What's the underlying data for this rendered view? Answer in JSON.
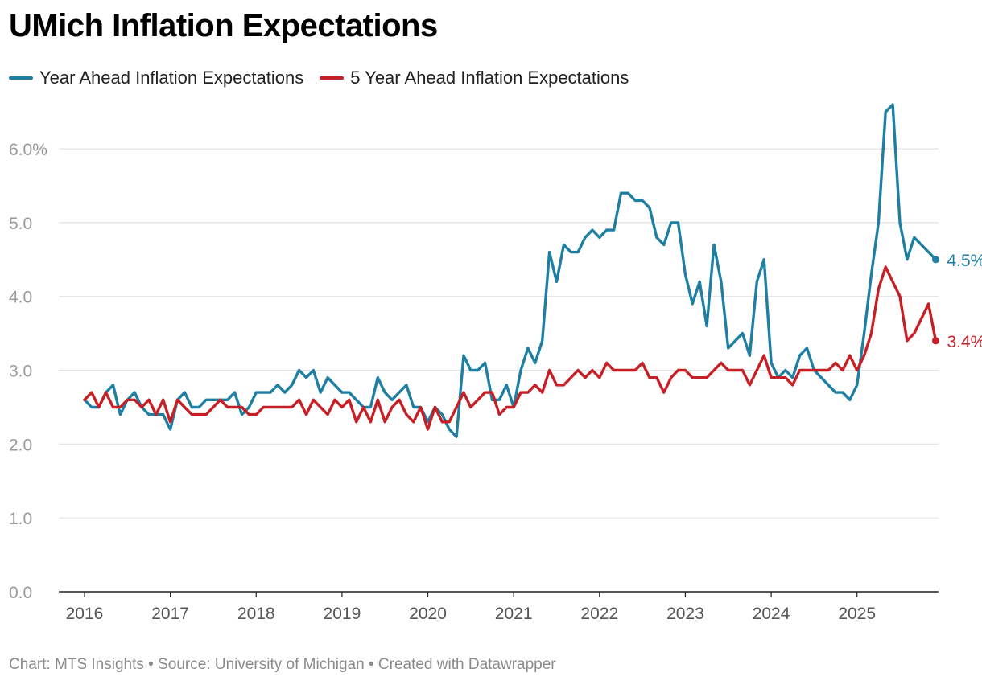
{
  "header": {
    "title": "UMich Inflation Expectations"
  },
  "legend": {
    "items": [
      {
        "label": "Year Ahead Inflation Expectations",
        "color": "#1f7fa3"
      },
      {
        "label": "5 Year Ahead Inflation Expectations",
        "color": "#c62026"
      }
    ]
  },
  "footer": {
    "text": "Chart: MTS Insights • Source: University of Michigan • Created with Datawrapper"
  },
  "chart_data": {
    "type": "line",
    "title": "UMich Inflation Expectations",
    "xlabel": "",
    "ylabel": "",
    "x_start": "2016-01",
    "x_end": "2025-11",
    "xlim": [
      2015.7,
      2025.95
    ],
    "ylim": [
      0,
      6.6
    ],
    "grid": true,
    "legend_position": "top-left",
    "x_ticks": [
      "2016",
      "2017",
      "2018",
      "2019",
      "2020",
      "2021",
      "2022",
      "2023",
      "2024",
      "2025"
    ],
    "y_ticks": [
      {
        "value": 0,
        "label": "0.0"
      },
      {
        "value": 1,
        "label": "1.0"
      },
      {
        "value": 2,
        "label": "2.0"
      },
      {
        "value": 3,
        "label": "3.0"
      },
      {
        "value": 4,
        "label": "4.0"
      },
      {
        "value": 5,
        "label": "5.0"
      },
      {
        "value": 6,
        "label": "6.0%"
      }
    ],
    "series": [
      {
        "name": "Year Ahead Inflation Expectations",
        "color": "#1f7fa3",
        "end_label": "4.5%",
        "values": [
          2.6,
          2.5,
          2.5,
          2.7,
          2.8,
          2.4,
          2.6,
          2.7,
          2.5,
          2.4,
          2.4,
          2.4,
          2.2,
          2.6,
          2.7,
          2.5,
          2.5,
          2.6,
          2.6,
          2.6,
          2.6,
          2.7,
          2.4,
          2.5,
          2.7,
          2.7,
          2.7,
          2.8,
          2.7,
          2.8,
          3.0,
          2.9,
          3.0,
          2.7,
          2.9,
          2.8,
          2.7,
          2.7,
          2.6,
          2.5,
          2.5,
          2.9,
          2.7,
          2.6,
          2.7,
          2.8,
          2.5,
          2.5,
          2.3,
          2.5,
          2.4,
          2.2,
          2.1,
          3.2,
          3.0,
          3.0,
          3.1,
          2.6,
          2.6,
          2.8,
          2.5,
          3.0,
          3.3,
          3.1,
          3.4,
          4.6,
          4.2,
          4.7,
          4.6,
          4.6,
          4.8,
          4.9,
          4.8,
          4.9,
          4.9,
          5.4,
          5.4,
          5.3,
          5.3,
          5.2,
          4.8,
          4.7,
          5.0,
          5.0,
          4.3,
          3.9,
          4.2,
          3.6,
          4.7,
          4.2,
          3.3,
          3.4,
          3.5,
          3.2,
          4.2,
          4.5,
          3.1,
          2.9,
          3.0,
          2.9,
          3.2,
          3.3,
          3.0,
          2.9,
          2.8,
          2.7,
          2.7,
          2.6,
          2.8,
          3.5,
          4.3,
          5.0,
          6.5,
          6.6,
          5.0,
          4.5,
          4.8,
          4.7,
          4.6,
          4.5
        ]
      },
      {
        "name": "5 Year Ahead Inflation Expectations",
        "color": "#c62026",
        "end_label": "3.4%",
        "values": [
          2.6,
          2.7,
          2.5,
          2.7,
          2.5,
          2.5,
          2.6,
          2.6,
          2.5,
          2.6,
          2.4,
          2.6,
          2.3,
          2.6,
          2.5,
          2.4,
          2.4,
          2.4,
          2.5,
          2.6,
          2.5,
          2.5,
          2.5,
          2.4,
          2.4,
          2.5,
          2.5,
          2.5,
          2.5,
          2.5,
          2.6,
          2.4,
          2.6,
          2.5,
          2.4,
          2.6,
          2.5,
          2.6,
          2.3,
          2.5,
          2.3,
          2.6,
          2.3,
          2.5,
          2.6,
          2.4,
          2.3,
          2.5,
          2.2,
          2.5,
          2.3,
          2.3,
          2.5,
          2.7,
          2.5,
          2.6,
          2.7,
          2.7,
          2.4,
          2.5,
          2.5,
          2.7,
          2.7,
          2.8,
          2.7,
          3.0,
          2.8,
          2.8,
          2.9,
          3.0,
          2.9,
          3.0,
          2.9,
          3.1,
          3.0,
          3.0,
          3.0,
          3.0,
          3.1,
          2.9,
          2.9,
          2.7,
          2.9,
          3.0,
          3.0,
          2.9,
          2.9,
          2.9,
          3.0,
          3.1,
          3.0,
          3.0,
          3.0,
          2.8,
          3.0,
          3.2,
          2.9,
          2.9,
          2.9,
          2.8,
          3.0,
          3.0,
          3.0,
          3.0,
          3.0,
          3.1,
          3.0,
          3.2,
          3.0,
          3.2,
          3.5,
          4.1,
          4.4,
          4.2,
          4.0,
          3.4,
          3.5,
          3.7,
          3.9,
          3.4
        ]
      }
    ]
  }
}
